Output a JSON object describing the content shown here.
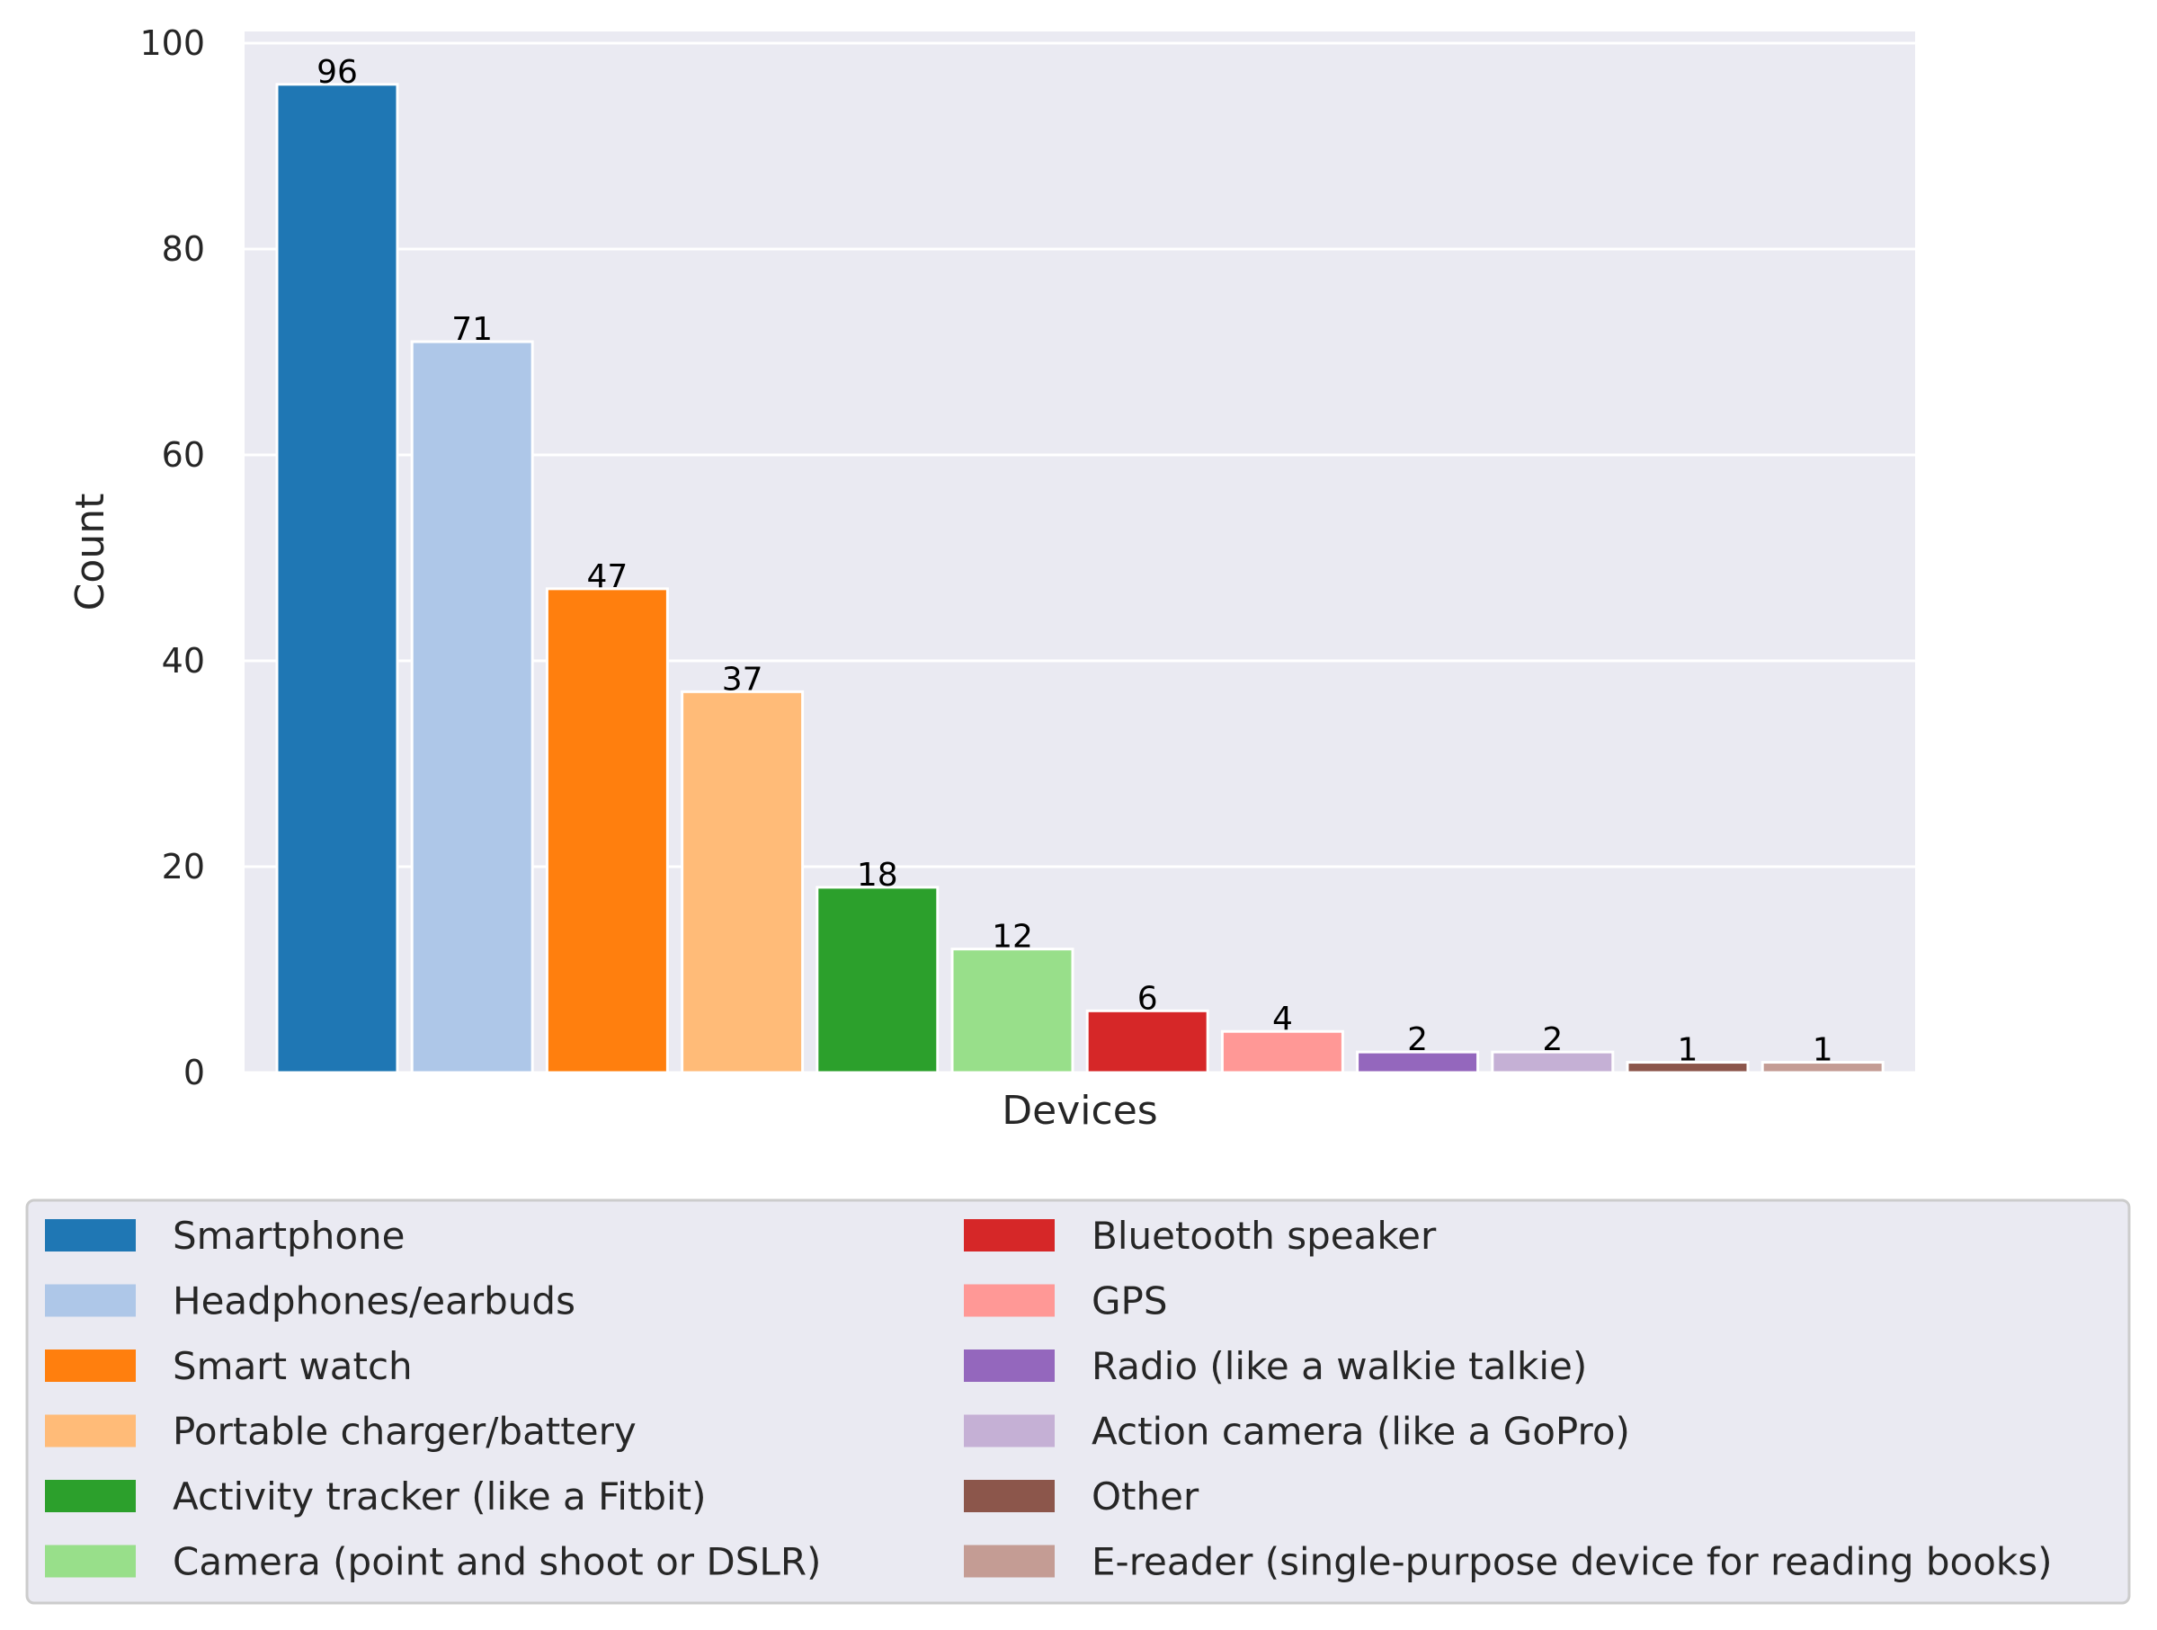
{
  "chart_data": {
    "type": "bar",
    "xlabel": "Devices",
    "ylabel": "Count",
    "ylim": [
      0,
      100
    ],
    "yticks": [
      0,
      20,
      40,
      60,
      80,
      100
    ],
    "grid": true,
    "legend_position": "bottom",
    "categories": [
      "Smartphone",
      "Headphones/earbuds",
      "Smart watch",
      "Portable charger/battery",
      "Activity tracker (like a Fitbit)",
      "Camera (point and shoot or DSLR)",
      "Bluetooth speaker",
      "GPS",
      "Radio (like a walkie talkie)",
      "Action camera (like a GoPro)",
      "Other",
      "E-reader (single-purpose device for reading books)"
    ],
    "values": [
      96,
      71,
      47,
      37,
      18,
      12,
      6,
      4,
      2,
      2,
      1,
      1
    ],
    "colors": [
      "#1f77b4",
      "#aec7e8",
      "#ff7f0e",
      "#ffbb78",
      "#2ca02c",
      "#98df8a",
      "#d62728",
      "#ff9896",
      "#9467bd",
      "#c5b0d5",
      "#8c564b",
      "#c49c94"
    ]
  }
}
